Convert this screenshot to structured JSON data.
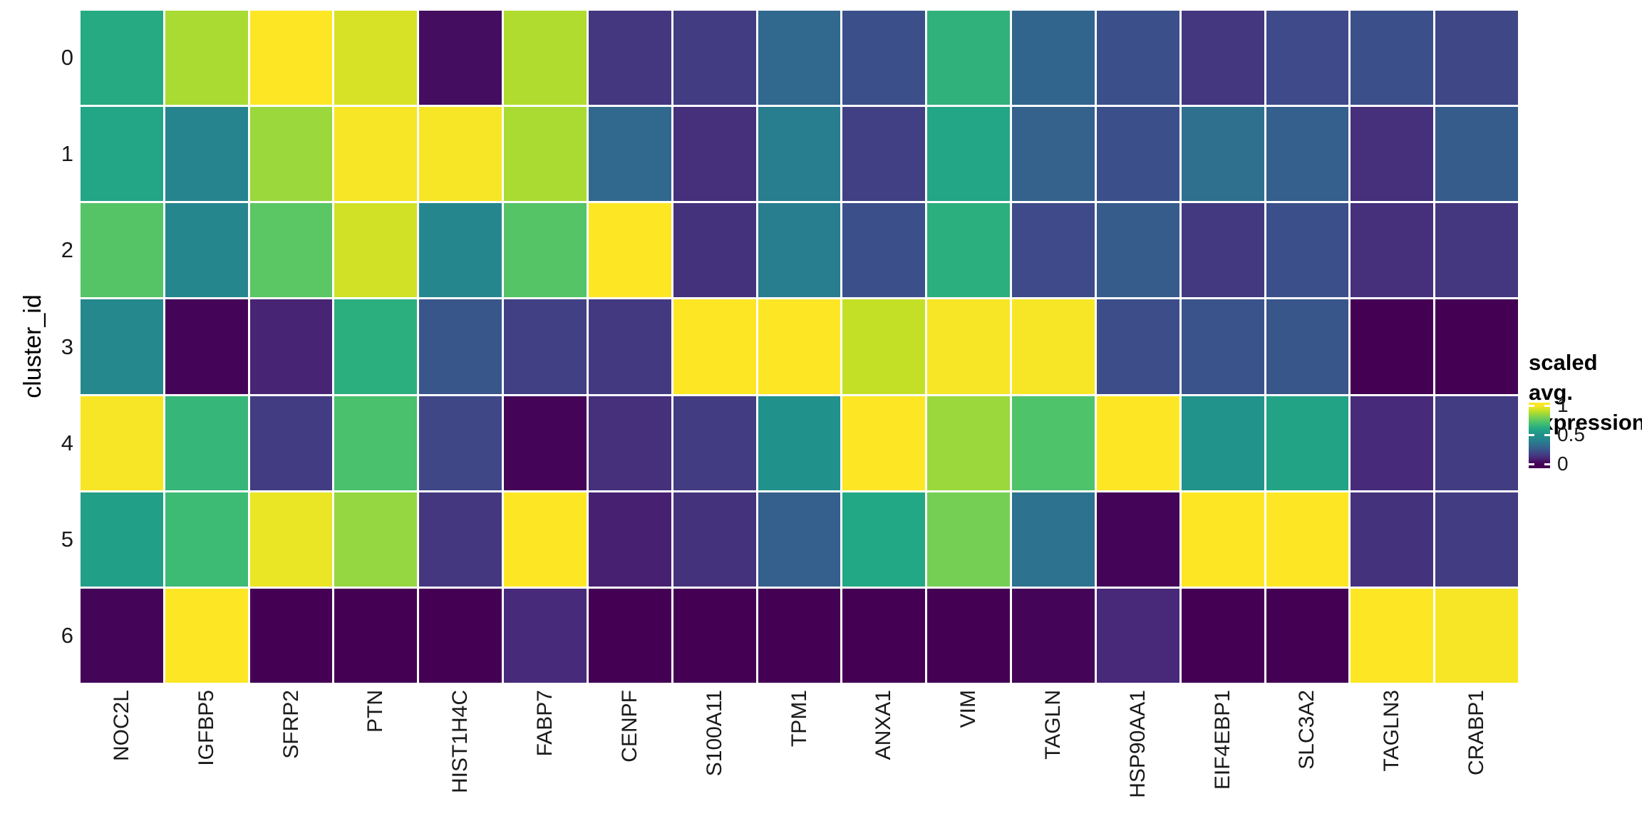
{
  "figure": {
    "y_axis_title": "cluster_id",
    "legend": {
      "title_line1": "scaled avg.",
      "title_line2": "expression",
      "ticks": [
        {
          "label": "1",
          "value": 1
        },
        {
          "label": "0.5",
          "value": 0.5
        },
        {
          "label": "0",
          "value": 0
        }
      ]
    },
    "colors": {
      "background": "#ffffff",
      "cell_gap": "#ffffff",
      "axis_text": "#1a1a1a",
      "viridis_low": "#440154",
      "viridis_mid": "#21918c",
      "viridis_high": "#fde725"
    }
  },
  "chart_data": {
    "type": "heatmap",
    "title": "",
    "xlabel": "",
    "ylabel": "cluster_id",
    "value_label": "scaled avg. expression",
    "colormap": "viridis",
    "value_range": [
      0,
      1
    ],
    "legend_position": "right",
    "x_categories": [
      "NOC2L",
      "IGFBP5",
      "SFRP2",
      "PTN",
      "HIST1H4C",
      "FABP7",
      "CENPF",
      "S100A11",
      "TPM1",
      "ANXA1",
      "VIM",
      "TAGLN",
      "HSP90AA1",
      "EIF4EBP1",
      "SLC3A2",
      "TAGLN3",
      "CRABP1"
    ],
    "y_categories": [
      "0",
      "1",
      "2",
      "3",
      "4",
      "5",
      "6"
    ],
    "values": [
      [
        0.61,
        0.87,
        1.0,
        0.94,
        0.03,
        0.88,
        0.14,
        0.16,
        0.3,
        0.22,
        0.64,
        0.29,
        0.22,
        0.14,
        0.2,
        0.22,
        0.19
      ],
      [
        0.59,
        0.41,
        0.85,
        0.99,
        0.99,
        0.87,
        0.3,
        0.12,
        0.38,
        0.17,
        0.59,
        0.28,
        0.22,
        0.33,
        0.27,
        0.12,
        0.26
      ],
      [
        0.73,
        0.43,
        0.74,
        0.93,
        0.43,
        0.73,
        1.0,
        0.13,
        0.38,
        0.22,
        0.63,
        0.2,
        0.26,
        0.15,
        0.22,
        0.12,
        0.14
      ],
      [
        0.44,
        0.01,
        0.09,
        0.63,
        0.24,
        0.17,
        0.15,
        1.0,
        1.0,
        0.91,
        0.99,
        0.99,
        0.21,
        0.23,
        0.24,
        0.0,
        0.0
      ],
      [
        0.99,
        0.66,
        0.16,
        0.71,
        0.19,
        0.01,
        0.12,
        0.16,
        0.5,
        1.0,
        0.85,
        0.72,
        1.0,
        0.51,
        0.58,
        0.11,
        0.16
      ],
      [
        0.56,
        0.68,
        0.97,
        0.84,
        0.14,
        1.0,
        0.08,
        0.13,
        0.27,
        0.6,
        0.79,
        0.34,
        0.01,
        1.0,
        1.0,
        0.13,
        0.16
      ],
      [
        0.01,
        1.0,
        0.0,
        0.0,
        0.0,
        0.11,
        0.0,
        0.0,
        0.0,
        0.0,
        0.0,
        0.01,
        0.1,
        0.0,
        0.0,
        1.0,
        0.99
      ]
    ]
  }
}
